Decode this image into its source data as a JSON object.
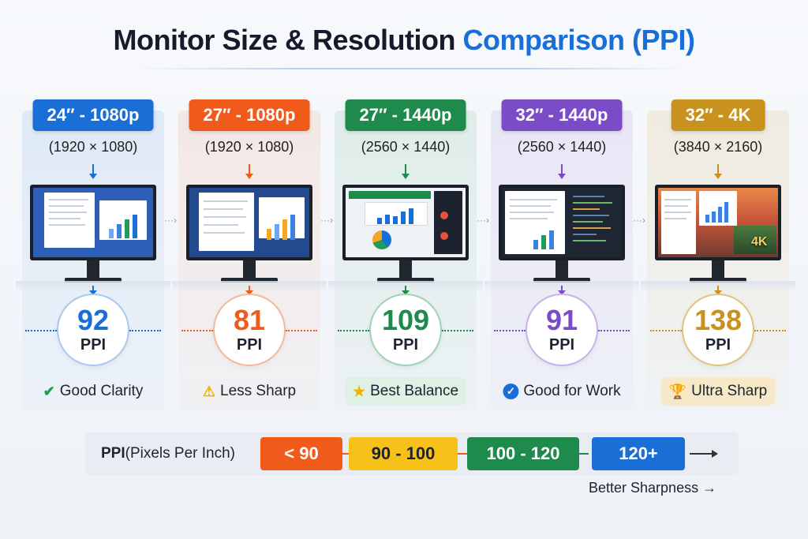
{
  "title": {
    "main": "Monitor Size & Resolution ",
    "accent": "Comparison (PPI)"
  },
  "colors": {
    "blue": "#1a6fd6",
    "orange": "#f05a1a",
    "green": "#1e8a4c",
    "purple": "#7a4cc8",
    "gold": "#c9921e",
    "yellow": "#f6c21a"
  },
  "monitors": [
    {
      "label": "24″ - 1080p",
      "resolution": "(1920 × 1080)",
      "ppi": "92",
      "ppi_unit": "PPI",
      "verdict": "Good Clarity",
      "verdict_icon": "check-icon",
      "icon_glyph": "✔"
    },
    {
      "label": "27″ - 1080p",
      "resolution": "(1920 × 1080)",
      "ppi": "81",
      "ppi_unit": "PPI",
      "verdict": "Less Sharp",
      "verdict_icon": "warning-icon",
      "icon_glyph": "⚠"
    },
    {
      "label": "27″ - 1440p",
      "resolution": "(2560 × 1440)",
      "ppi": "109",
      "ppi_unit": "PPI",
      "verdict": "Best Balance",
      "verdict_icon": "star-icon",
      "icon_glyph": "★"
    },
    {
      "label": "32″ - 1440p",
      "resolution": "(2560 × 1440)",
      "ppi": "91",
      "ppi_unit": "PPI",
      "verdict": "Good for Work",
      "verdict_icon": "check-circle-icon",
      "icon_glyph": "✓"
    },
    {
      "label": "32″ - 4K",
      "resolution": "(3840 × 2160)",
      "ppi": "138",
      "ppi_unit": "PPI",
      "verdict": "Ultra Sharp",
      "verdict_icon": "trophy-icon",
      "icon_glyph": "🏆"
    }
  ],
  "screen_badge": "4K",
  "legend": {
    "title_bold": "PPI",
    "title_rest": " (Pixels Per Inch)",
    "ranges": [
      "< 90",
      "90 - 100",
      "100 - 120",
      "120+"
    ],
    "footer": "Better Sharpness →"
  }
}
